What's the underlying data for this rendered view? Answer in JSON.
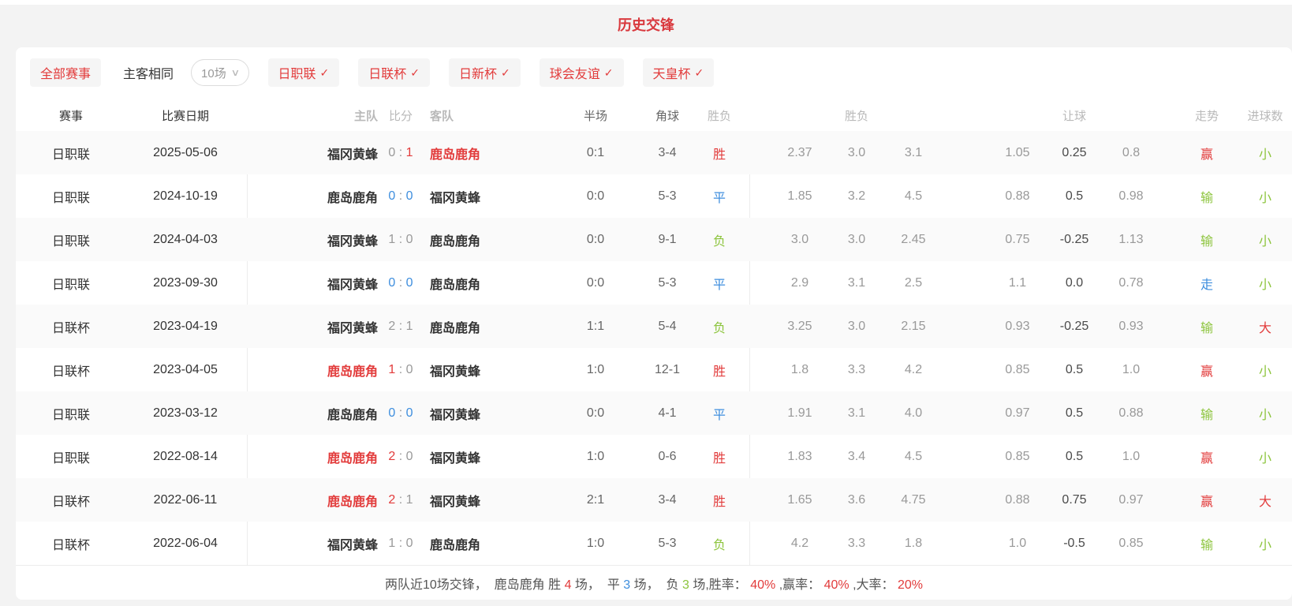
{
  "title": "历史交锋",
  "icons": {
    "chevron_down": "∨",
    "check": "✓"
  },
  "colors": {
    "red": "#e23b3b",
    "blue": "#3e8ede",
    "green": "#8cc43c",
    "gray": "#999999",
    "dark": "#555555",
    "title_red": "#d9383d",
    "team_dark": "#333333"
  },
  "filters": {
    "all_label": "全部赛事",
    "same_venue_label": "主客相同",
    "count_select": "10场",
    "leagues": [
      {
        "label": "日职联",
        "checked": true
      },
      {
        "label": "日联杯",
        "checked": true
      },
      {
        "label": "日新杯",
        "checked": true
      },
      {
        "label": "球会友谊",
        "checked": true
      },
      {
        "label": "天皇杯",
        "checked": true
      }
    ]
  },
  "table": {
    "headers": {
      "league": "赛事",
      "date": "比赛日期",
      "home": "主队",
      "score": "比分",
      "away": "客队",
      "half": "半场",
      "corner": "角球",
      "result": "胜负",
      "odds_group": "胜负",
      "handicap_group": "让球",
      "trend": "走势",
      "goals": "进球数"
    },
    "rows": [
      {
        "league": "日职联",
        "date": "2025-05-06",
        "home": "福冈黄蜂",
        "home_red": false,
        "score_home": "0",
        "score_home_color": "gray",
        "score_away": "1",
        "score_away_color": "red",
        "away": "鹿岛鹿角",
        "away_red": true,
        "half": "0:1",
        "corner": "3-4",
        "result": "胜",
        "result_color": "red",
        "odds": [
          "2.37",
          "3.0",
          "3.1"
        ],
        "handicap": [
          "1.05",
          "0.25",
          "0.8"
        ],
        "trend": "赢",
        "trend_color": "red",
        "goals": "小",
        "goals_color": "green"
      },
      {
        "league": "日职联",
        "date": "2024-10-19",
        "home": "鹿岛鹿角",
        "home_red": false,
        "score_home": "0",
        "score_home_color": "blue",
        "score_away": "0",
        "score_away_color": "blue",
        "away": "福冈黄蜂",
        "away_red": false,
        "half": "0:0",
        "corner": "5-3",
        "result": "平",
        "result_color": "blue",
        "odds": [
          "1.85",
          "3.2",
          "4.5"
        ],
        "handicap": [
          "0.88",
          "0.5",
          "0.98"
        ],
        "trend": "输",
        "trend_color": "green",
        "goals": "小",
        "goals_color": "green"
      },
      {
        "league": "日职联",
        "date": "2024-04-03",
        "home": "福冈黄蜂",
        "home_red": false,
        "score_home": "1",
        "score_home_color": "gray",
        "score_away": "0",
        "score_away_color": "gray",
        "away": "鹿岛鹿角",
        "away_red": false,
        "half": "0:0",
        "corner": "9-1",
        "result": "负",
        "result_color": "green",
        "odds": [
          "3.0",
          "3.0",
          "2.45"
        ],
        "handicap": [
          "0.75",
          "-0.25",
          "1.13"
        ],
        "trend": "输",
        "trend_color": "green",
        "goals": "小",
        "goals_color": "green"
      },
      {
        "league": "日职联",
        "date": "2023-09-30",
        "home": "福冈黄蜂",
        "home_red": false,
        "score_home": "0",
        "score_home_color": "blue",
        "score_away": "0",
        "score_away_color": "blue",
        "away": "鹿岛鹿角",
        "away_red": false,
        "half": "0:0",
        "corner": "5-3",
        "result": "平",
        "result_color": "blue",
        "odds": [
          "2.9",
          "3.1",
          "2.5"
        ],
        "handicap": [
          "1.1",
          "0.0",
          "0.78"
        ],
        "trend": "走",
        "trend_color": "blue",
        "goals": "小",
        "goals_color": "green"
      },
      {
        "league": "日联杯",
        "date": "2023-04-19",
        "home": "福冈黄蜂",
        "home_red": false,
        "score_home": "2",
        "score_home_color": "gray",
        "score_away": "1",
        "score_away_color": "gray",
        "away": "鹿岛鹿角",
        "away_red": false,
        "half": "1:1",
        "corner": "5-4",
        "result": "负",
        "result_color": "green",
        "odds": [
          "3.25",
          "3.0",
          "2.15"
        ],
        "handicap": [
          "0.93",
          "-0.25",
          "0.93"
        ],
        "trend": "输",
        "trend_color": "green",
        "goals": "大",
        "goals_color": "red"
      },
      {
        "league": "日联杯",
        "date": "2023-04-05",
        "home": "鹿岛鹿角",
        "home_red": true,
        "score_home": "1",
        "score_home_color": "red",
        "score_away": "0",
        "score_away_color": "gray",
        "away": "福冈黄蜂",
        "away_red": false,
        "half": "1:0",
        "corner": "12-1",
        "result": "胜",
        "result_color": "red",
        "odds": [
          "1.8",
          "3.3",
          "4.2"
        ],
        "handicap": [
          "0.85",
          "0.5",
          "1.0"
        ],
        "trend": "赢",
        "trend_color": "red",
        "goals": "小",
        "goals_color": "green"
      },
      {
        "league": "日职联",
        "date": "2023-03-12",
        "home": "鹿岛鹿角",
        "home_red": false,
        "score_home": "0",
        "score_home_color": "blue",
        "score_away": "0",
        "score_away_color": "blue",
        "away": "福冈黄蜂",
        "away_red": false,
        "half": "0:0",
        "corner": "4-1",
        "result": "平",
        "result_color": "blue",
        "odds": [
          "1.91",
          "3.1",
          "4.0"
        ],
        "handicap": [
          "0.97",
          "0.5",
          "0.88"
        ],
        "trend": "输",
        "trend_color": "green",
        "goals": "小",
        "goals_color": "green"
      },
      {
        "league": "日职联",
        "date": "2022-08-14",
        "home": "鹿岛鹿角",
        "home_red": true,
        "score_home": "2",
        "score_home_color": "red",
        "score_away": "0",
        "score_away_color": "gray",
        "away": "福冈黄蜂",
        "away_red": false,
        "half": "1:0",
        "corner": "0-6",
        "result": "胜",
        "result_color": "red",
        "odds": [
          "1.83",
          "3.4",
          "4.5"
        ],
        "handicap": [
          "0.85",
          "0.5",
          "1.0"
        ],
        "trend": "赢",
        "trend_color": "red",
        "goals": "小",
        "goals_color": "green"
      },
      {
        "league": "日联杯",
        "date": "2022-06-11",
        "home": "鹿岛鹿角",
        "home_red": true,
        "score_home": "2",
        "score_home_color": "red",
        "score_away": "1",
        "score_away_color": "gray",
        "away": "福冈黄蜂",
        "away_red": false,
        "half": "2:1",
        "corner": "3-4",
        "result": "胜",
        "result_color": "red",
        "odds": [
          "1.65",
          "3.6",
          "4.75"
        ],
        "handicap": [
          "0.88",
          "0.75",
          "0.97"
        ],
        "trend": "赢",
        "trend_color": "red",
        "goals": "大",
        "goals_color": "red"
      },
      {
        "league": "日联杯",
        "date": "2022-06-04",
        "home": "福冈黄蜂",
        "home_red": false,
        "score_home": "1",
        "score_home_color": "gray",
        "score_away": "0",
        "score_away_color": "gray",
        "away": "鹿岛鹿角",
        "away_red": false,
        "half": "1:0",
        "corner": "5-3",
        "result": "负",
        "result_color": "green",
        "odds": [
          "4.2",
          "3.3",
          "1.8"
        ],
        "handicap": [
          "1.0",
          "-0.5",
          "0.85"
        ],
        "trend": "输",
        "trend_color": "green",
        "goals": "小",
        "goals_color": "green"
      }
    ]
  },
  "summary": {
    "segments": [
      {
        "text": "两队近10场交锋，  鹿岛鹿角 胜 ",
        "color": "dark"
      },
      {
        "text": "4",
        "color": "red"
      },
      {
        "text": " 场，  平 ",
        "color": "dark"
      },
      {
        "text": "3",
        "color": "blue"
      },
      {
        "text": " 场，  负 ",
        "color": "dark"
      },
      {
        "text": "3",
        "color": "green"
      },
      {
        "text": " 场,胜率： ",
        "color": "dark"
      },
      {
        "text": "40%",
        "color": "red"
      },
      {
        "text": " ,赢率： ",
        "color": "dark"
      },
      {
        "text": "40%",
        "color": "red"
      },
      {
        "text": " ,大率： ",
        "color": "dark"
      },
      {
        "text": "20%",
        "color": "red"
      }
    ]
  }
}
